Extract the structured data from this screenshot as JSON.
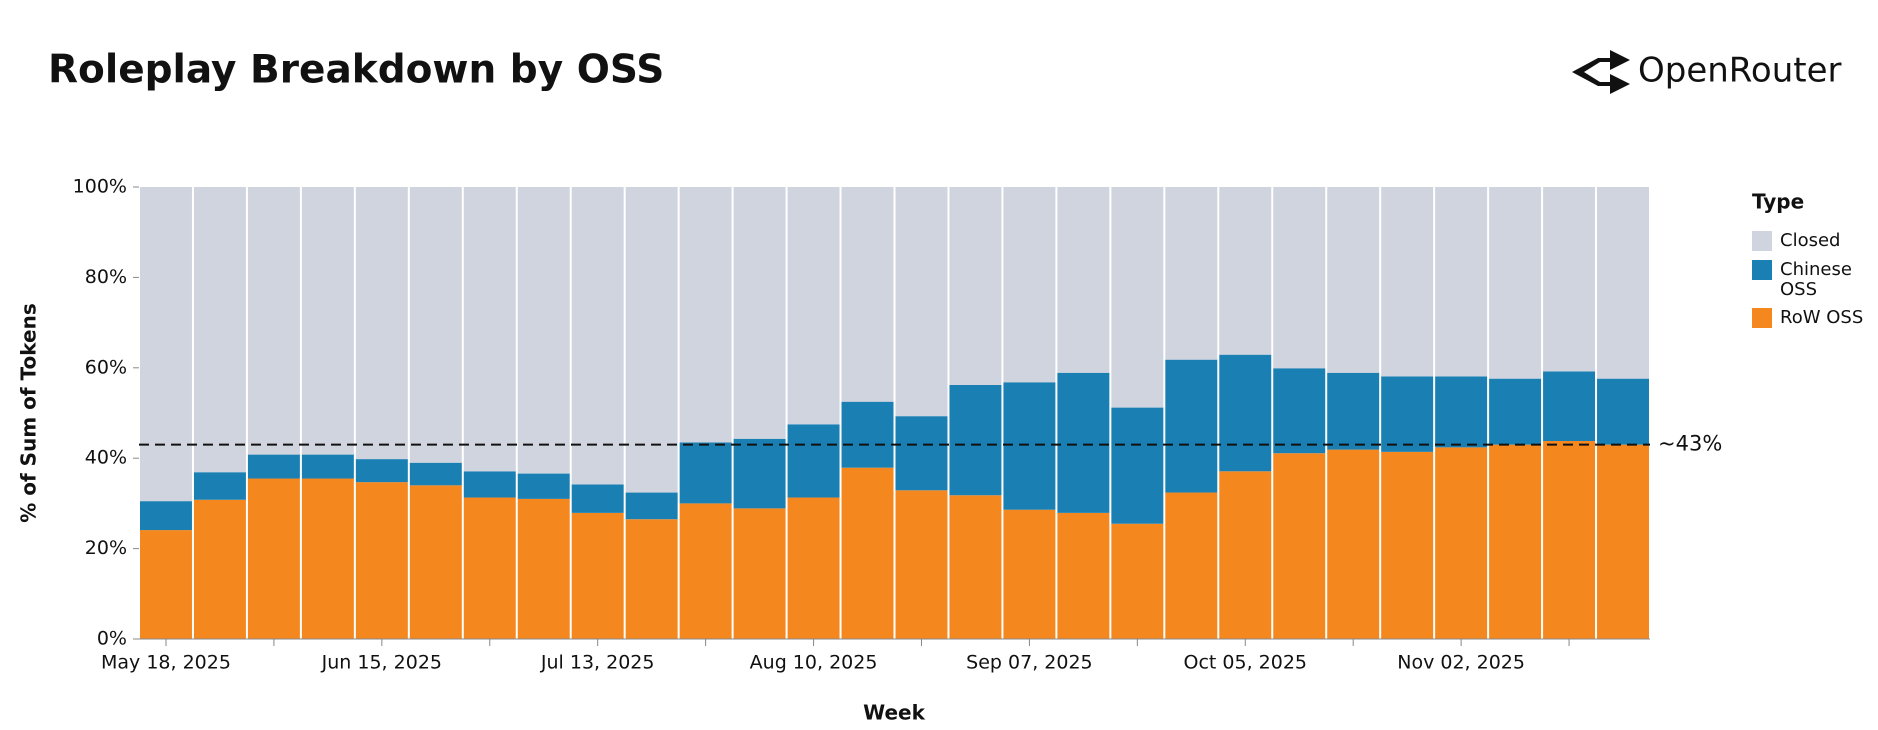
{
  "brand": "OpenRouter",
  "chart_data": {
    "type": "stacked_bar",
    "title": "Roleplay Breakdown by OSS",
    "x_label": "Week",
    "y_label": "% of Sum of Tokens",
    "legend_title": "Type",
    "categories": [
      "May 18, 2025",
      null,
      null,
      null,
      "Jun 15, 2025",
      null,
      null,
      null,
      "Jul 13, 2025",
      null,
      null,
      null,
      "Aug 10, 2025",
      null,
      null,
      null,
      "Sep 07, 2025",
      null,
      null,
      null,
      "Oct 05, 2025",
      null,
      null,
      null,
      "Nov 02, 2025",
      null,
      null,
      null
    ],
    "series": [
      {
        "name": "RoW OSS",
        "color": "#f5871f",
        "values": [
          24.1,
          30.8,
          35.5,
          35.5,
          34.7,
          34.0,
          31.3,
          31.0,
          27.9,
          26.5,
          30.0,
          28.9,
          31.3,
          37.9,
          32.9,
          31.8,
          28.6,
          27.9,
          25.5,
          32.4,
          37.1,
          41.1,
          41.9,
          41.4,
          42.4,
          43.0,
          43.8,
          43.0
        ]
      },
      {
        "name": "Chinese OSS",
        "color": "#1a80b4",
        "values": [
          6.4,
          6.1,
          5.3,
          5.3,
          5.1,
          5.0,
          5.8,
          5.6,
          6.3,
          5.9,
          13.5,
          15.4,
          16.2,
          14.6,
          16.4,
          24.4,
          28.2,
          31.0,
          25.7,
          29.4,
          25.8,
          18.8,
          17.0,
          16.7,
          15.7,
          14.6,
          15.4,
          14.6
        ]
      },
      {
        "name": "Closed",
        "color": "#d0d4df",
        "values": [
          69.5,
          63.1,
          59.2,
          59.2,
          60.2,
          61.0,
          62.9,
          63.4,
          65.8,
          67.6,
          56.5,
          55.7,
          52.5,
          47.5,
          50.7,
          43.8,
          43.2,
          41.1,
          48.8,
          38.2,
          37.1,
          40.1,
          41.1,
          41.9,
          41.9,
          42.4,
          40.8,
          42.4
        ]
      }
    ],
    "ylim": [
      0,
      100
    ],
    "yticks": [
      {
        "value": 0,
        "label": "0%"
      },
      {
        "value": 20,
        "label": "20%"
      },
      {
        "value": 40,
        "label": "40%"
      },
      {
        "value": 60,
        "label": "60%"
      },
      {
        "value": 80,
        "label": "80%"
      },
      {
        "value": 100,
        "label": "100%"
      }
    ],
    "reference_line": {
      "value": 43,
      "label": "~43%"
    },
    "legend_position": "right"
  }
}
